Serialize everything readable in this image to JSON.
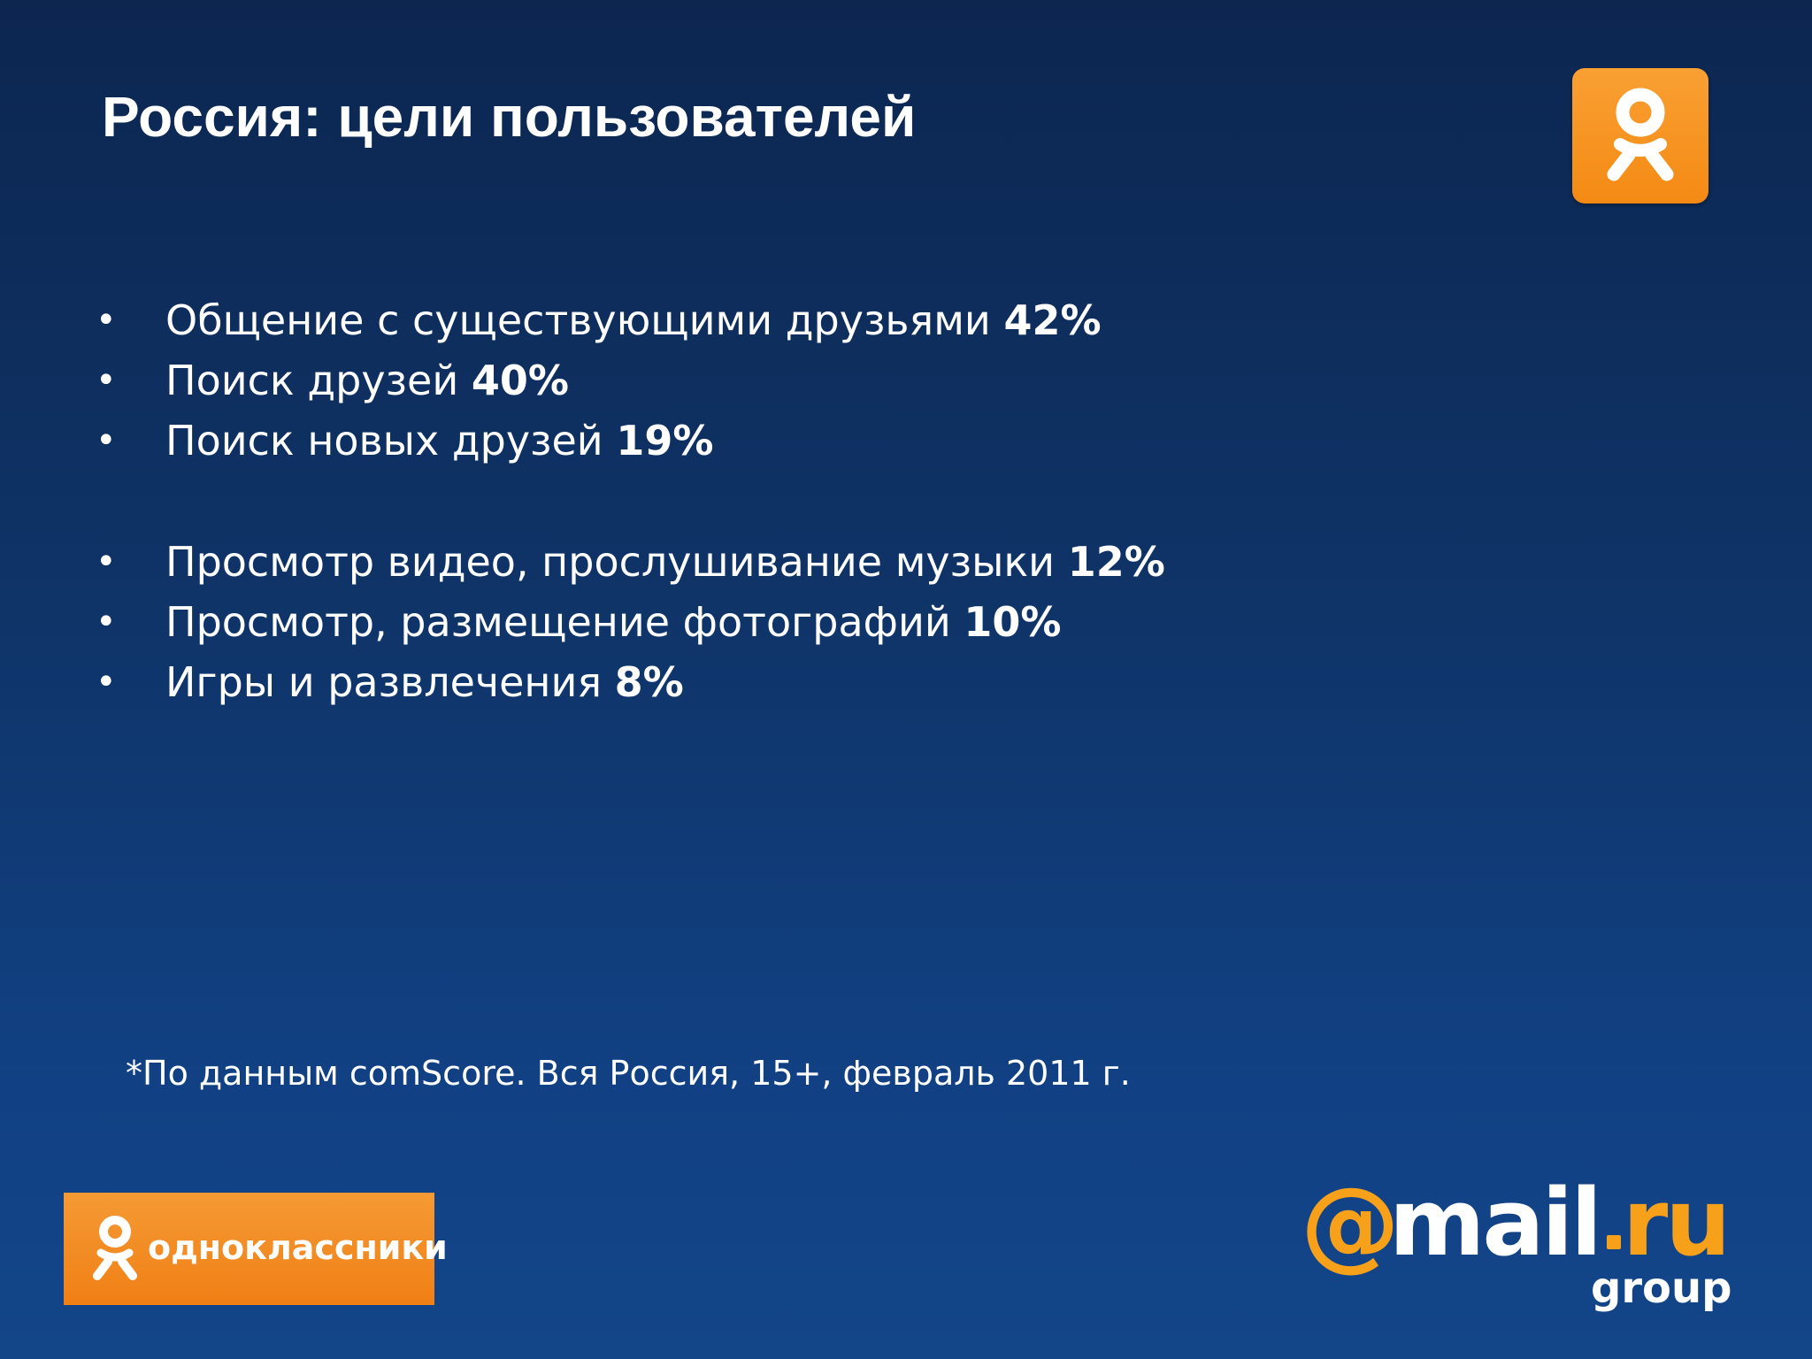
{
  "slide": {
    "title": "Россия: цели пользователей",
    "bullets": [
      {
        "text": "Общение с существующими друзьями",
        "value": "42%"
      },
      {
        "text": "Поиск друзей",
        "value": "40%"
      },
      {
        "text": "Поиск новых друзей",
        "value": "19%"
      },
      {
        "text": "Просмотр видео, прослушивание музыки",
        "value": "12%"
      },
      {
        "text": "Просмотр, размещение фотографий",
        "value": "10%"
      },
      {
        "text": "Игры и развлечения",
        "value": "8%"
      }
    ],
    "bullet_glyph": "•",
    "footnote": "*По данным comScore. Вся Россия, 15+, февраль 2011 г."
  },
  "logos": {
    "ok_top_icon": "odnoklassniki-icon",
    "ok_badge_text": "одноклассники",
    "mailru": {
      "at": "@",
      "word": "mail",
      "ru": "ru",
      "group": "group"
    }
  },
  "colors": {
    "background_top": "#0c2650",
    "background_bottom": "#134589",
    "accent_orange": "#f48a14",
    "text": "#ffffff"
  }
}
